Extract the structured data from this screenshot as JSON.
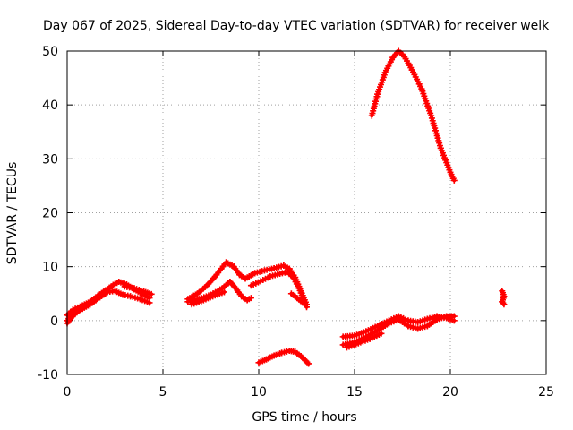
{
  "chart_data": {
    "type": "scatter",
    "title": "Day 067 of 2025, Sidereal Day-to-day VTEC variation (SDTVAR) for receiver welk",
    "xlabel": "GPS time / hours",
    "ylabel": "SDTVAR / TECUs",
    "xlim": [
      0,
      25
    ],
    "ylim": [
      -10,
      50
    ],
    "xticks": [
      0,
      5,
      10,
      15,
      20,
      25
    ],
    "yticks": [
      -10,
      0,
      10,
      20,
      30,
      40,
      50
    ],
    "xtick_labels": [
      "0",
      "5",
      "10",
      "15",
      "20",
      "25"
    ],
    "ytick_labels": [
      "-10",
      "0",
      "10",
      "20",
      "30",
      "40",
      "50"
    ],
    "grid": true,
    "series_color": "#ff0000",
    "series": [
      {
        "name": "track-1a",
        "points": [
          [
            0,
            1
          ],
          [
            0.3,
            2
          ],
          [
            0.8,
            2.8
          ],
          [
            1.2,
            3.5
          ],
          [
            1.6,
            4.6
          ],
          [
            2,
            5.6
          ],
          [
            2.4,
            6.6
          ],
          [
            2.7,
            7.2
          ],
          [
            3.1,
            6.7
          ],
          [
            3.5,
            5.8
          ],
          [
            4,
            4.8
          ],
          [
            4.3,
            4.2
          ]
        ]
      },
      {
        "name": "track-1b",
        "points": [
          [
            0,
            0
          ],
          [
            0.3,
            1.5
          ],
          [
            0.8,
            2.2
          ],
          [
            1.2,
            3
          ],
          [
            1.7,
            4.3
          ],
          [
            2.1,
            5.3
          ],
          [
            2.5,
            5.5
          ],
          [
            2.9,
            4.8
          ],
          [
            3.3,
            4.5
          ],
          [
            3.8,
            4
          ],
          [
            4.3,
            3.3
          ]
        ]
      },
      {
        "name": "track-1c",
        "points": [
          [
            0,
            -0.5
          ],
          [
            0.2,
            0.5
          ],
          [
            0.5,
            1.5
          ],
          [
            0.9,
            2.5
          ]
        ]
      },
      {
        "name": "track-1d",
        "points": [
          [
            3.0,
            6.3
          ],
          [
            3.5,
            6.0
          ],
          [
            4.0,
            5.4
          ],
          [
            4.4,
            4.9
          ]
        ]
      },
      {
        "name": "track-2a",
        "points": [
          [
            6.3,
            4
          ],
          [
            6.8,
            5
          ],
          [
            7.3,
            6.5
          ],
          [
            7.8,
            8.5
          ],
          [
            8.3,
            10.8
          ],
          [
            8.7,
            10
          ],
          [
            9,
            8.5
          ],
          [
            9.3,
            7.8
          ]
        ]
      },
      {
        "name": "track-2b",
        "points": [
          [
            6.3,
            3.5
          ],
          [
            6.9,
            4
          ],
          [
            7.5,
            4.8
          ],
          [
            8.1,
            6
          ],
          [
            8.5,
            7.2
          ],
          [
            8.8,
            6
          ],
          [
            9.1,
            4.5
          ],
          [
            9.4,
            3.8
          ],
          [
            9.6,
            4.2
          ]
        ]
      },
      {
        "name": "track-2c",
        "points": [
          [
            6.5,
            3
          ],
          [
            7,
            3.6
          ],
          [
            7.6,
            4.5
          ],
          [
            8.2,
            5.3
          ]
        ]
      },
      {
        "name": "track-2d",
        "points": [
          [
            9.3,
            7.8
          ],
          [
            9.8,
            8.8
          ],
          [
            10.3,
            9.3
          ],
          [
            10.8,
            9.7
          ],
          [
            11.3,
            10.2
          ],
          [
            11.6,
            9.6
          ],
          [
            11.9,
            8
          ],
          [
            12.2,
            5.5
          ],
          [
            12.5,
            3
          ]
        ]
      },
      {
        "name": "track-2e",
        "points": [
          [
            9.6,
            6.5
          ],
          [
            10.1,
            7.3
          ],
          [
            10.6,
            8.2
          ],
          [
            11.1,
            8.7
          ],
          [
            11.5,
            9
          ],
          [
            11.8,
            8
          ],
          [
            12.1,
            6
          ],
          [
            12.5,
            2.5
          ]
        ]
      },
      {
        "name": "track-2f",
        "points": [
          [
            11.7,
            5
          ],
          [
            12,
            4.2
          ],
          [
            12.4,
            3
          ]
        ]
      },
      {
        "name": "track-3",
        "points": [
          [
            10,
            -7.8
          ],
          [
            10.4,
            -7.2
          ],
          [
            10.8,
            -6.5
          ],
          [
            11.2,
            -6
          ],
          [
            11.6,
            -5.6
          ],
          [
            11.9,
            -5.8
          ],
          [
            12.2,
            -6.6
          ],
          [
            12.6,
            -8
          ]
        ]
      },
      {
        "name": "track-4a",
        "points": [
          [
            15.9,
            38
          ],
          [
            16.2,
            42
          ],
          [
            16.6,
            46
          ],
          [
            17.0,
            48.8
          ],
          [
            17.3,
            50
          ],
          [
            17.6,
            49
          ],
          [
            18.0,
            46.5
          ],
          [
            18.5,
            43
          ],
          [
            19.0,
            38
          ],
          [
            19.5,
            32
          ],
          [
            20.0,
            27.5
          ],
          [
            20.2,
            26
          ]
        ]
      },
      {
        "name": "track-4b",
        "points": [
          [
            14.4,
            -3
          ],
          [
            15,
            -2.8
          ],
          [
            15.6,
            -2
          ],
          [
            16.2,
            -1
          ],
          [
            16.8,
            0
          ],
          [
            17.3,
            0.8
          ],
          [
            17.8,
            0
          ],
          [
            18.3,
            -0.3
          ],
          [
            18.8,
            0.3
          ],
          [
            19.3,
            0.8
          ],
          [
            19.8,
            0.5
          ],
          [
            20.2,
            0
          ]
        ]
      },
      {
        "name": "track-4c",
        "points": [
          [
            14.4,
            -4.5
          ],
          [
            15,
            -4
          ],
          [
            15.6,
            -3
          ],
          [
            16.2,
            -1.8
          ],
          [
            16.8,
            -0.5
          ],
          [
            17.3,
            0.2
          ],
          [
            17.8,
            -1
          ],
          [
            18.3,
            -1.5
          ],
          [
            18.8,
            -1
          ],
          [
            19.3,
            0.2
          ],
          [
            19.8,
            0.8
          ],
          [
            20.2,
            0.8
          ]
        ]
      },
      {
        "name": "track-4d",
        "points": [
          [
            14.6,
            -5
          ],
          [
            15.2,
            -4.2
          ],
          [
            15.8,
            -3.4
          ],
          [
            16.4,
            -2.4
          ]
        ]
      },
      {
        "name": "track-5",
        "points": [
          [
            22.7,
            5.5
          ],
          [
            22.8,
            4.5
          ],
          [
            22.7,
            3.5
          ],
          [
            22.8,
            3
          ]
        ]
      }
    ]
  }
}
